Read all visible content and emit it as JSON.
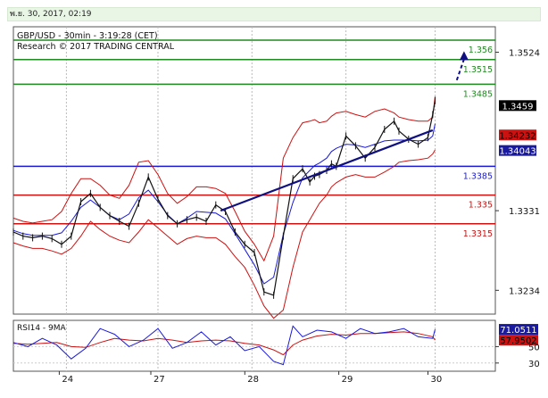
{
  "header": {
    "datetime": "พ.ย. 30, 2017, 02:19"
  },
  "chart_data": {
    "type": "line",
    "title": "GBP/USD - 30min - 3:19:28 (CET)",
    "subtitle": "Research © 2017 TRADING CENTRAL",
    "price_axis": {
      "range": [
        1.3205,
        1.3555
      ],
      "tick_values": [
        1.3524,
        1.3331,
        1.3234
      ],
      "tick_labels": [
        "1.3524",
        "1.3331",
        "1.3234"
      ]
    },
    "x_axis": {
      "tick_labels": [
        "24",
        "27",
        "28",
        "29",
        "30"
      ],
      "grid": true
    },
    "levels": [
      {
        "label": "1.356",
        "value": 1.356,
        "color": "#1f8a1f",
        "role": "resistance"
      },
      {
        "label": "1.3515",
        "value": 1.3515,
        "color": "#1f8a1f",
        "role": "resistance"
      },
      {
        "label": "1.3485",
        "value": 1.3485,
        "color": "#1f8a1f",
        "role": "resistance"
      },
      {
        "label": "1.3385",
        "value": 1.3385,
        "color": "#1a1ad8",
        "role": "pivot"
      },
      {
        "label": "1.335",
        "value": 1.335,
        "color": "#cc1111",
        "role": "support"
      },
      {
        "label": "1.3315",
        "value": 1.3315,
        "color": "#cc1111",
        "role": "support"
      }
    ],
    "price_tags": [
      {
        "label": "1.3459",
        "value": 1.3459,
        "bg": "#000000",
        "fg": "#ffffff"
      },
      {
        "label": "1.34232",
        "value": 1.34232,
        "bg": "#cc1111",
        "fg": "#000000"
      },
      {
        "label": "1.34043",
        "value": 1.34043,
        "bg": "#1a1aa0",
        "fg": "#ffffff"
      }
    ],
    "trendline": {
      "from": [
        0.43,
        1.3331
      ],
      "to": [
        0.87,
        1.3429
      ]
    },
    "price_series": {
      "name": "GBP/USD",
      "t": [
        0,
        0.02,
        0.04,
        0.06,
        0.08,
        0.1,
        0.12,
        0.14,
        0.16,
        0.18,
        0.2,
        0.22,
        0.24,
        0.26,
        0.28,
        0.3,
        0.32,
        0.34,
        0.36,
        0.38,
        0.4,
        0.42,
        0.44,
        0.46,
        0.48,
        0.5,
        0.52,
        0.54,
        0.56,
        0.58,
        0.6,
        0.615,
        0.625,
        0.635,
        0.65,
        0.66,
        0.67,
        0.69,
        0.71,
        0.73,
        0.75,
        0.77,
        0.79,
        0.8,
        0.82,
        0.84,
        0.86,
        0.87,
        0.875
      ],
      "close": [
        1.3305,
        1.33,
        1.3298,
        1.33,
        1.3297,
        1.329,
        1.33,
        1.3342,
        1.3352,
        1.3335,
        1.3325,
        1.3318,
        1.3312,
        1.334,
        1.3372,
        1.3345,
        1.3325,
        1.3315,
        1.332,
        1.3323,
        1.3318,
        1.3338,
        1.333,
        1.3305,
        1.329,
        1.328,
        1.3232,
        1.3228,
        1.33,
        1.337,
        1.3382,
        1.3366,
        1.3373,
        1.3375,
        1.338,
        1.3388,
        1.3385,
        1.3422,
        1.341,
        1.3395,
        1.3408,
        1.343,
        1.344,
        1.3428,
        1.3418,
        1.3412,
        1.342,
        1.3448,
        1.3465
      ]
    },
    "bands": {
      "upper": [
        1.3322,
        1.3318,
        1.3316,
        1.3318,
        1.332,
        1.333,
        1.3352,
        1.337,
        1.337,
        1.3362,
        1.335,
        1.3346,
        1.3362,
        1.339,
        1.3392,
        1.3375,
        1.3352,
        1.334,
        1.3348,
        1.336,
        1.336,
        1.3358,
        1.3352,
        1.333,
        1.3306,
        1.329,
        1.327,
        1.33,
        1.3395,
        1.342,
        1.3438,
        1.344,
        1.3442,
        1.3438,
        1.344,
        1.3446,
        1.345,
        1.3452,
        1.3448,
        1.3445,
        1.3452,
        1.3455,
        1.345,
        1.3445,
        1.3442,
        1.344,
        1.344,
        1.3445,
        1.347
      ],
      "lower": [
        1.3292,
        1.3288,
        1.3285,
        1.3285,
        1.3282,
        1.3278,
        1.3285,
        1.33,
        1.3318,
        1.3308,
        1.33,
        1.3295,
        1.3292,
        1.3305,
        1.332,
        1.331,
        1.33,
        1.329,
        1.3297,
        1.33,
        1.3298,
        1.3298,
        1.329,
        1.3275,
        1.3262,
        1.324,
        1.3215,
        1.32,
        1.321,
        1.3262,
        1.3305,
        1.332,
        1.333,
        1.334,
        1.335,
        1.336,
        1.3365,
        1.3372,
        1.3375,
        1.3372,
        1.3372,
        1.3378,
        1.3385,
        1.339,
        1.3392,
        1.3393,
        1.3395,
        1.34,
        1.3405
      ],
      "mid": [
        1.3307,
        1.3303,
        1.3301,
        1.3301,
        1.3301,
        1.3304,
        1.3318,
        1.3335,
        1.3344,
        1.3335,
        1.3325,
        1.332,
        1.3327,
        1.3347,
        1.3356,
        1.3342,
        1.3326,
        1.3315,
        1.3322,
        1.333,
        1.3329,
        1.3328,
        1.3321,
        1.3303,
        1.3284,
        1.3265,
        1.3242,
        1.325,
        1.3302,
        1.3341,
        1.3371,
        1.338,
        1.3386,
        1.3389,
        1.3395,
        1.3403,
        1.3407,
        1.3412,
        1.3411,
        1.3408,
        1.3412,
        1.3416,
        1.3417,
        1.3417,
        1.3417,
        1.3416,
        1.3417,
        1.3422,
        1.3437
      ]
    },
    "rsi_panel": {
      "title": "RSI14 - 9MA",
      "range": [
        20,
        82
      ],
      "tick_values": [
        50,
        30
      ],
      "tick_labels": [
        "50",
        "30"
      ],
      "tags": [
        {
          "label": "71.0511",
          "value": 71.0511,
          "bg": "#1a1aa0",
          "fg": "#ffffff"
        },
        {
          "label": "57.9502",
          "value": 57.9502,
          "bg": "#cc1111",
          "fg": "#000000"
        }
      ],
      "t": [
        0,
        0.03,
        0.06,
        0.09,
        0.12,
        0.15,
        0.18,
        0.21,
        0.24,
        0.27,
        0.3,
        0.33,
        0.36,
        0.39,
        0.42,
        0.45,
        0.48,
        0.51,
        0.54,
        0.56,
        0.58,
        0.6,
        0.63,
        0.66,
        0.69,
        0.72,
        0.75,
        0.78,
        0.81,
        0.84,
        0.87,
        0.875
      ],
      "rsi": [
        55,
        50,
        60,
        52,
        35,
        48,
        72,
        65,
        50,
        58,
        72,
        48,
        55,
        68,
        52,
        62,
        45,
        50,
        32,
        28,
        75,
        62,
        70,
        68,
        60,
        72,
        66,
        68,
        72,
        62,
        60,
        71
      ],
      "ma": [
        54,
        53,
        54,
        55,
        50,
        49,
        55,
        60,
        58,
        57,
        60,
        58,
        55,
        57,
        58,
        57,
        54,
        52,
        46,
        40,
        52,
        58,
        63,
        65,
        64,
        66,
        66,
        67,
        68,
        66,
        62,
        58
      ]
    }
  }
}
